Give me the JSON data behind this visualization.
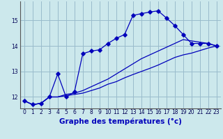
{
  "title": "Graphe des températures (°c)",
  "bg_color": "#cce8ec",
  "line_color": "#0000bb",
  "grid_color": "#99bbcc",
  "xlim": [
    -0.5,
    23.5
  ],
  "ylim": [
    11.55,
    15.75
  ],
  "x_ticks": [
    0,
    1,
    2,
    3,
    4,
    5,
    6,
    7,
    8,
    9,
    10,
    11,
    12,
    13,
    14,
    15,
    16,
    17,
    18,
    19,
    20,
    21,
    22,
    23
  ],
  "y_ticks": [
    12,
    13,
    14,
    15
  ],
  "curve_main": [
    11.85,
    11.7,
    11.75,
    12.0,
    12.9,
    12.0,
    12.2,
    13.7,
    13.8,
    13.85,
    14.1,
    14.3,
    14.45,
    15.2,
    15.27,
    15.33,
    15.38,
    15.1,
    14.8,
    14.45,
    14.1,
    14.1,
    14.1,
    14.0
  ],
  "curve_mid": [
    11.85,
    11.7,
    11.75,
    12.0,
    12.0,
    12.1,
    12.15,
    12.25,
    12.4,
    12.55,
    12.7,
    12.9,
    13.1,
    13.3,
    13.5,
    13.65,
    13.8,
    13.95,
    14.1,
    14.25,
    14.2,
    14.15,
    14.1,
    14.0
  ],
  "curve_low": [
    11.85,
    11.7,
    11.75,
    12.0,
    12.0,
    12.05,
    12.1,
    12.15,
    12.25,
    12.35,
    12.5,
    12.6,
    12.75,
    12.88,
    13.0,
    13.12,
    13.25,
    13.4,
    13.55,
    13.65,
    13.72,
    13.82,
    13.92,
    14.0
  ],
  "tick_fontsize": 5.5,
  "label_fontsize": 7.5,
  "marker_size": 2.8
}
